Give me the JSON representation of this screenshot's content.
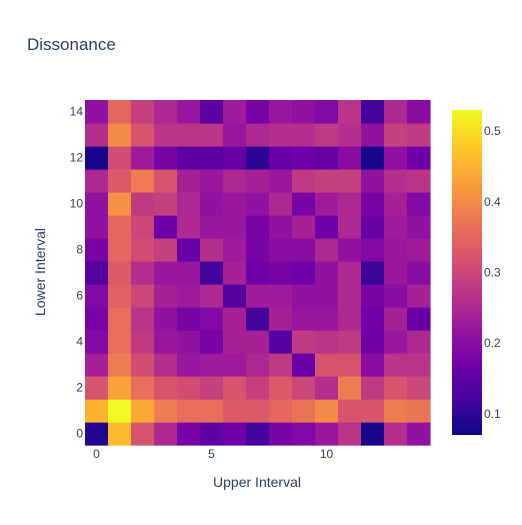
{
  "chart_data": {
    "type": "heatmap",
    "title": "Dissonance",
    "xlabel": "Upper Interval",
    "ylabel": "Lower Interval",
    "x": [
      0,
      1,
      2,
      3,
      4,
      5,
      6,
      7,
      8,
      9,
      10,
      11,
      12,
      13,
      14
    ],
    "y": [
      0,
      1,
      2,
      3,
      4,
      5,
      6,
      7,
      8,
      9,
      10,
      11,
      12,
      13,
      14
    ],
    "x_tick_values": [
      0,
      5,
      10
    ],
    "y_tick_values": [
      0,
      2,
      4,
      6,
      8,
      10,
      12,
      14
    ],
    "x_tick_labels": [
      "0",
      "5",
      "10"
    ],
    "y_tick_labels": [
      "0",
      "2",
      "4",
      "6",
      "8",
      "10",
      "12",
      "14"
    ],
    "colorbar": {
      "colorscale": "Plasma",
      "range": [
        0.07,
        0.53
      ],
      "tick_values": [
        0.1,
        0.2,
        0.3,
        0.4,
        0.5
      ],
      "tick_labels": [
        "0.1",
        "0.2",
        "0.3",
        "0.4",
        "0.5"
      ]
    },
    "z": [
      [
        0.09,
        0.46,
        0.32,
        0.25,
        0.18,
        0.15,
        0.17,
        0.12,
        0.18,
        0.19,
        0.22,
        0.27,
        0.08,
        0.26,
        0.21
      ],
      [
        0.45,
        0.53,
        0.44,
        0.38,
        0.36,
        0.36,
        0.33,
        0.33,
        0.35,
        0.37,
        0.4,
        0.32,
        0.32,
        0.38,
        0.37
      ],
      [
        0.32,
        0.43,
        0.36,
        0.32,
        0.31,
        0.29,
        0.32,
        0.29,
        0.33,
        0.3,
        0.26,
        0.38,
        0.28,
        0.32,
        0.3
      ],
      [
        0.24,
        0.38,
        0.31,
        0.26,
        0.22,
        0.23,
        0.23,
        0.25,
        0.28,
        0.16,
        0.32,
        0.32,
        0.2,
        0.27,
        0.27
      ],
      [
        0.19,
        0.36,
        0.28,
        0.22,
        0.21,
        0.18,
        0.24,
        0.24,
        0.14,
        0.28,
        0.27,
        0.28,
        0.17,
        0.22,
        0.25
      ],
      [
        0.18,
        0.36,
        0.27,
        0.21,
        0.18,
        0.19,
        0.24,
        0.12,
        0.24,
        0.22,
        0.22,
        0.25,
        0.17,
        0.24,
        0.16
      ],
      [
        0.19,
        0.34,
        0.3,
        0.24,
        0.23,
        0.25,
        0.14,
        0.23,
        0.23,
        0.21,
        0.21,
        0.25,
        0.18,
        0.2,
        0.24
      ],
      [
        0.14,
        0.33,
        0.26,
        0.22,
        0.22,
        0.12,
        0.24,
        0.17,
        0.18,
        0.17,
        0.21,
        0.25,
        0.11,
        0.22,
        0.2
      ],
      [
        0.18,
        0.35,
        0.31,
        0.29,
        0.16,
        0.26,
        0.23,
        0.18,
        0.2,
        0.2,
        0.25,
        0.21,
        0.19,
        0.22,
        0.23
      ],
      [
        0.21,
        0.35,
        0.3,
        0.17,
        0.25,
        0.22,
        0.22,
        0.18,
        0.21,
        0.24,
        0.17,
        0.25,
        0.16,
        0.23,
        0.21
      ],
      [
        0.21,
        0.41,
        0.28,
        0.29,
        0.25,
        0.21,
        0.22,
        0.21,
        0.25,
        0.18,
        0.23,
        0.25,
        0.18,
        0.24,
        0.19
      ],
      [
        0.25,
        0.33,
        0.38,
        0.32,
        0.24,
        0.22,
        0.25,
        0.24,
        0.22,
        0.28,
        0.29,
        0.29,
        0.21,
        0.26,
        0.27
      ],
      [
        0.08,
        0.31,
        0.23,
        0.18,
        0.15,
        0.15,
        0.16,
        0.1,
        0.16,
        0.17,
        0.16,
        0.2,
        0.08,
        0.21,
        0.17
      ],
      [
        0.26,
        0.4,
        0.32,
        0.27,
        0.27,
        0.27,
        0.22,
        0.25,
        0.26,
        0.26,
        0.28,
        0.26,
        0.21,
        0.29,
        0.28
      ],
      [
        0.21,
        0.35,
        0.29,
        0.25,
        0.22,
        0.15,
        0.23,
        0.18,
        0.22,
        0.21,
        0.19,
        0.27,
        0.12,
        0.25,
        0.2
      ]
    ]
  }
}
